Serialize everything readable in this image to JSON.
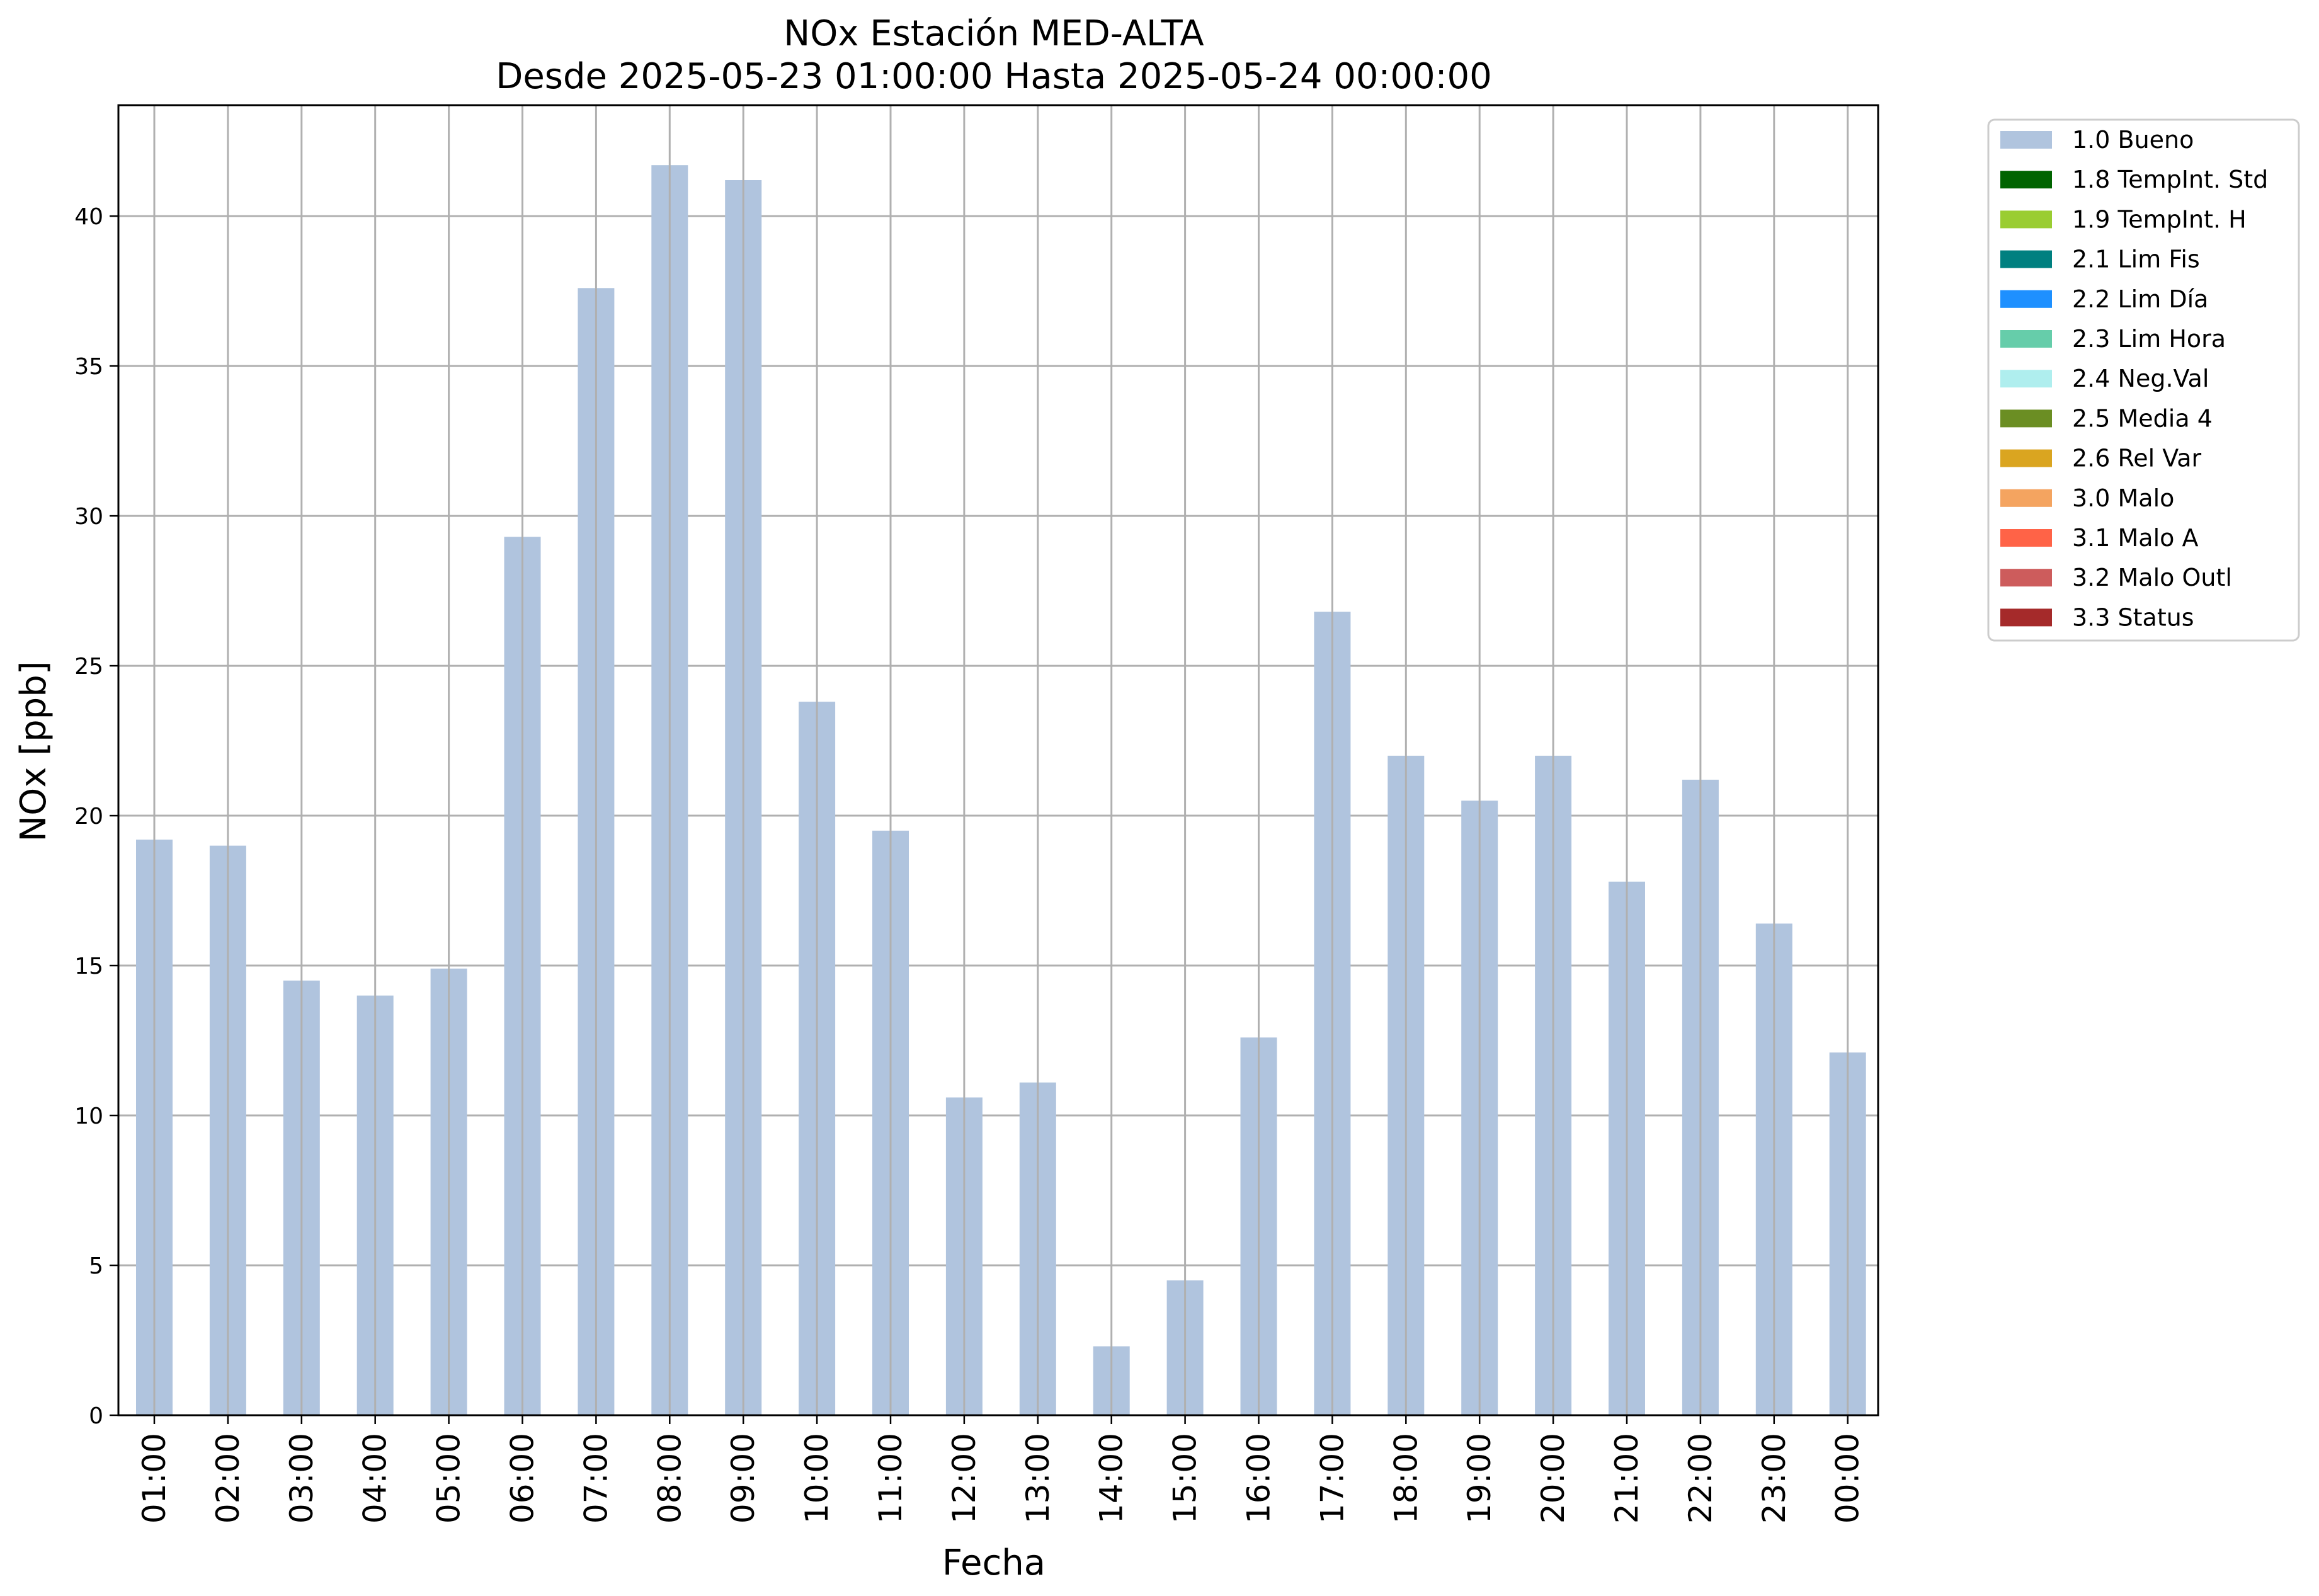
{
  "chart_data": {
    "type": "bar",
    "title": "NOx Estación MED-ALTA",
    "subtitle": "Desde 2025-05-23 01:00:00 Hasta 2025-05-24 00:00:00",
    "xlabel": "Fecha",
    "ylabel": "NOx [ppb]",
    "ylim": [
      0,
      43.7
    ],
    "yticks": [
      0,
      5,
      10,
      15,
      20,
      25,
      30,
      35,
      40
    ],
    "grid": true,
    "legend_position": "outside-top-right",
    "categories": [
      "01:00",
      "02:00",
      "03:00",
      "04:00",
      "05:00",
      "06:00",
      "07:00",
      "08:00",
      "09:00",
      "10:00",
      "11:00",
      "12:00",
      "13:00",
      "14:00",
      "15:00",
      "16:00",
      "17:00",
      "18:00",
      "19:00",
      "20:00",
      "21:00",
      "22:00",
      "23:00",
      "00:00"
    ],
    "series": [
      {
        "name": "1.0 Bueno",
        "color": "#b0c4de",
        "values": [
          19.2,
          19.0,
          14.5,
          14.0,
          14.9,
          29.3,
          37.6,
          41.7,
          41.2,
          23.8,
          19.5,
          10.6,
          11.1,
          2.3,
          4.5,
          12.6,
          26.8,
          22.0,
          20.5,
          22.0,
          17.8,
          21.2,
          16.4,
          12.1
        ]
      }
    ],
    "legend": [
      {
        "label": "1.0 Bueno",
        "color": "#b0c4de"
      },
      {
        "label": "1.8 TempInt. Std",
        "color": "#006400"
      },
      {
        "label": "1.9 TempInt. H",
        "color": "#9acd32"
      },
      {
        "label": "2.1 Lim Fis",
        "color": "#008080"
      },
      {
        "label": "2.2 Lim Día",
        "color": "#1e90ff"
      },
      {
        "label": "2.3 Lim Hora",
        "color": "#66cdaa"
      },
      {
        "label": "2.4 Neg.Val",
        "color": "#afeeee"
      },
      {
        "label": "2.5 Media 4",
        "color": "#6b8e23"
      },
      {
        "label": "2.6 Rel Var",
        "color": "#daa520"
      },
      {
        "label": "3.0 Malo",
        "color": "#f4a460"
      },
      {
        "label": "3.1 Malo A",
        "color": "#ff6347"
      },
      {
        "label": "3.2 Malo Outl",
        "color": "#cd5c5c"
      },
      {
        "label": "3.3 Status",
        "color": "#a52a2a"
      }
    ]
  }
}
